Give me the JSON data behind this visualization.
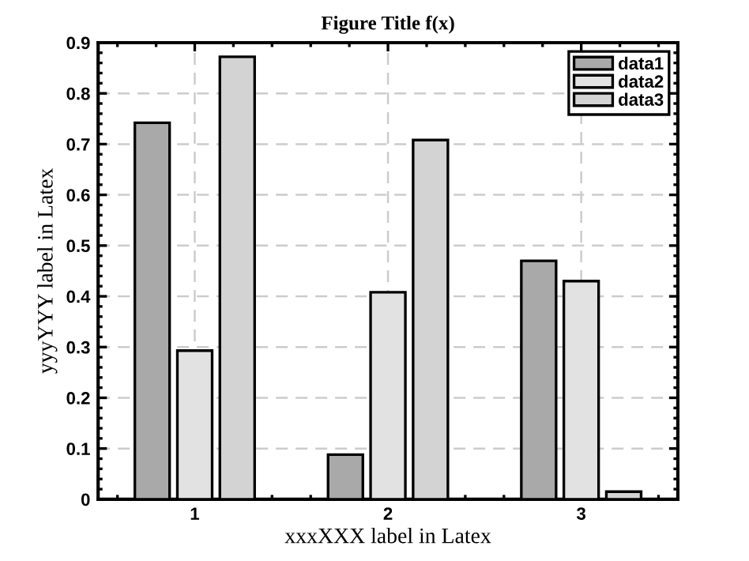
{
  "chart_data": {
    "type": "bar",
    "title": "Figure Title f(x)",
    "xlabel": "xxxXXX label in Latex",
    "ylabel": "yyyYYY label in Latex",
    "categories": [
      "1",
      "2",
      "3"
    ],
    "series": [
      {
        "name": "data1",
        "color": "#a9a9a9",
        "values": [
          0.742,
          0.088,
          0.47
        ]
      },
      {
        "name": "data2",
        "color": "#e2e2e2",
        "values": [
          0.293,
          0.408,
          0.43
        ]
      },
      {
        "name": "data3",
        "color": "#d3d3d3",
        "values": [
          0.872,
          0.708,
          0.015
        ]
      }
    ],
    "ylim": [
      0,
      0.9
    ],
    "yticks": [
      0,
      0.1,
      0.2,
      0.3,
      0.4,
      0.5,
      0.6,
      0.7,
      0.8,
      0.9
    ],
    "grid": true,
    "legend": "top right"
  }
}
